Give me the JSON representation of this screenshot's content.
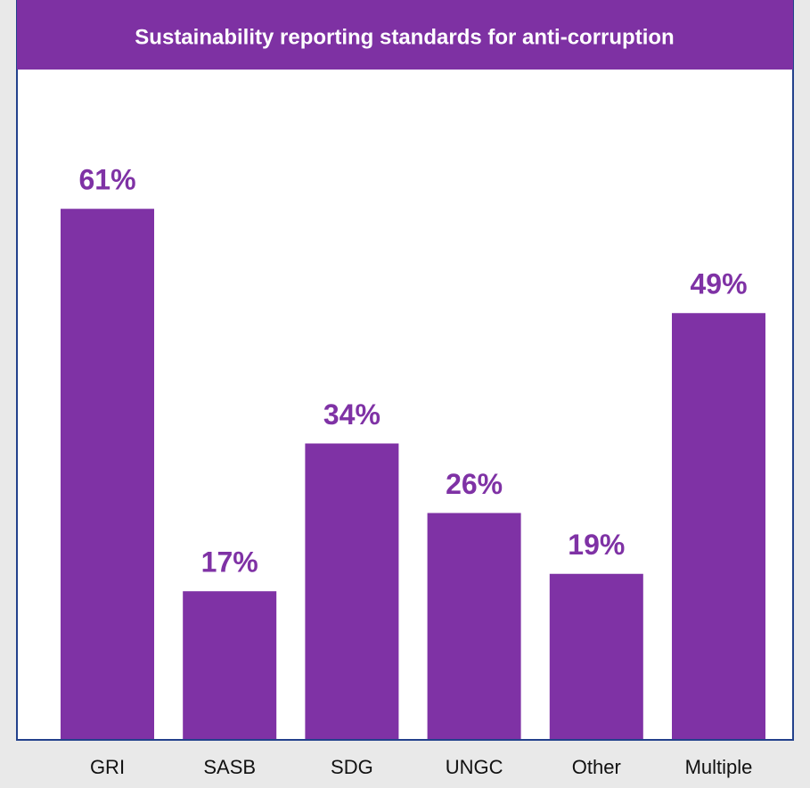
{
  "chart_data": {
    "type": "bar",
    "title": "Sustainability reporting standards for anti-corruption",
    "categories": [
      "GRI",
      "SASB",
      "SDG",
      "UNGC",
      "Other",
      "Multiple"
    ],
    "values": [
      61,
      17,
      34,
      26,
      19,
      49
    ],
    "value_labels": [
      "61%",
      "17%",
      "34%",
      "26%",
      "19%",
      "49%"
    ],
    "color": "#7f32a5"
  }
}
